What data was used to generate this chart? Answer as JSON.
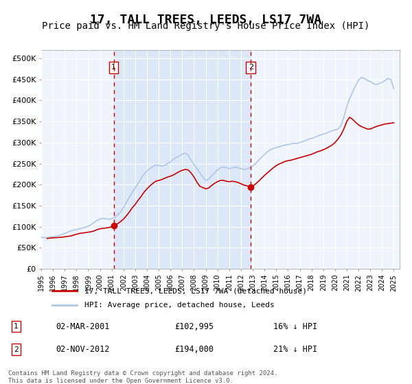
{
  "title": "17, TALL TREES, LEEDS, LS17 7WA",
  "subtitle": "Price paid vs. HM Land Registry's House Price Index (HPI)",
  "title_fontsize": 13,
  "subtitle_fontsize": 10,
  "ylabel": "",
  "xlim_start": 1995.0,
  "xlim_end": 2025.5,
  "ylim": [
    0,
    520000
  ],
  "yticks": [
    0,
    50000,
    100000,
    150000,
    200000,
    250000,
    300000,
    350000,
    400000,
    450000,
    500000
  ],
  "ytick_labels": [
    "£0",
    "£50K",
    "£100K",
    "£150K",
    "£200K",
    "£250K",
    "£300K",
    "£350K",
    "£400K",
    "£450K",
    "£500K"
  ],
  "xticks": [
    1995,
    1996,
    1997,
    1998,
    1999,
    2000,
    2001,
    2002,
    2003,
    2004,
    2005,
    2006,
    2007,
    2008,
    2009,
    2010,
    2011,
    2012,
    2013,
    2014,
    2015,
    2016,
    2017,
    2018,
    2019,
    2020,
    2021,
    2022,
    2023,
    2024,
    2025
  ],
  "hpi_color": "#aec6e8",
  "price_color": "#cc0000",
  "marker_color": "#cc0000",
  "background_color": "#f0f4fc",
  "plot_bg_color": "#f0f4fc",
  "shaded_region": [
    2001.17,
    2012.84
  ],
  "shaded_color": "#dce8f8",
  "vline1_x": 2001.17,
  "vline2_x": 2012.84,
  "vline_color": "#cc0000",
  "marker1_x": 2001.17,
  "marker1_y": 102995,
  "marker2_x": 2012.84,
  "marker2_y": 194000,
  "legend_label1": "17, TALL TREES, LEEDS, LS17 7WA (detached house)",
  "legend_label2": "HPI: Average price, detached house, Leeds",
  "annotation1_label": "1",
  "annotation2_label": "2",
  "footer_text": "Contains HM Land Registry data © Crown copyright and database right 2024.\nThis data is licensed under the Open Government Licence v3.0.",
  "table_row1": [
    "1",
    "02-MAR-2001",
    "£102,995",
    "16% ↓ HPI"
  ],
  "table_row2": [
    "2",
    "02-NOV-2012",
    "£194,000",
    "21% ↓ HPI"
  ],
  "hpi_data_x": [
    1995.0,
    1995.25,
    1995.5,
    1995.75,
    1996.0,
    1996.25,
    1996.5,
    1996.75,
    1997.0,
    1997.25,
    1997.5,
    1997.75,
    1998.0,
    1998.25,
    1998.5,
    1998.75,
    1999.0,
    1999.25,
    1999.5,
    1999.75,
    2000.0,
    2000.25,
    2000.5,
    2000.75,
    2001.0,
    2001.25,
    2001.5,
    2001.75,
    2002.0,
    2002.25,
    2002.5,
    2002.75,
    2003.0,
    2003.25,
    2003.5,
    2003.75,
    2004.0,
    2004.25,
    2004.5,
    2004.75,
    2005.0,
    2005.25,
    2005.5,
    2005.75,
    2006.0,
    2006.25,
    2006.5,
    2006.75,
    2007.0,
    2007.25,
    2007.5,
    2007.75,
    2008.0,
    2008.25,
    2008.5,
    2008.75,
    2009.0,
    2009.25,
    2009.5,
    2009.75,
    2010.0,
    2010.25,
    2010.5,
    2010.75,
    2011.0,
    2011.25,
    2011.5,
    2011.75,
    2012.0,
    2012.25,
    2012.5,
    2012.75,
    2013.0,
    2013.25,
    2013.5,
    2013.75,
    2014.0,
    2014.25,
    2014.5,
    2014.75,
    2015.0,
    2015.25,
    2015.5,
    2015.75,
    2016.0,
    2016.25,
    2016.5,
    2016.75,
    2017.0,
    2017.25,
    2017.5,
    2017.75,
    2018.0,
    2018.25,
    2018.5,
    2018.75,
    2019.0,
    2019.25,
    2019.5,
    2019.75,
    2020.0,
    2020.25,
    2020.5,
    2020.75,
    2021.0,
    2021.25,
    2021.5,
    2021.75,
    2022.0,
    2022.25,
    2022.5,
    2022.75,
    2023.0,
    2023.25,
    2023.5,
    2023.75,
    2024.0,
    2024.25,
    2024.5,
    2024.75,
    2025.0
  ],
  "hpi_data_y": [
    75000,
    74000,
    74500,
    75500,
    76000,
    77000,
    79000,
    81000,
    84000,
    87000,
    90000,
    92000,
    93000,
    95000,
    97000,
    99000,
    101000,
    105000,
    110000,
    115000,
    118000,
    120000,
    119000,
    118000,
    119000,
    122000,
    128000,
    135000,
    145000,
    158000,
    170000,
    182000,
    192000,
    203000,
    215000,
    225000,
    232000,
    238000,
    243000,
    247000,
    245000,
    244000,
    246000,
    250000,
    254000,
    260000,
    265000,
    268000,
    272000,
    275000,
    270000,
    258000,
    248000,
    238000,
    228000,
    218000,
    210000,
    213000,
    220000,
    228000,
    235000,
    240000,
    242000,
    240000,
    238000,
    240000,
    242000,
    240000,
    238000,
    236000,
    237000,
    240000,
    244000,
    250000,
    258000,
    265000,
    272000,
    278000,
    283000,
    286000,
    288000,
    290000,
    292000,
    294000,
    295000,
    297000,
    298000,
    298000,
    300000,
    302000,
    305000,
    308000,
    310000,
    312000,
    315000,
    318000,
    320000,
    322000,
    325000,
    328000,
    330000,
    332000,
    340000,
    360000,
    385000,
    405000,
    420000,
    435000,
    448000,
    455000,
    452000,
    448000,
    445000,
    440000,
    438000,
    440000,
    443000,
    447000,
    452000,
    450000,
    428000
  ],
  "price_data_x": [
    1995.5,
    1995.75,
    1996.0,
    1996.25,
    1996.5,
    1996.75,
    1997.0,
    1997.25,
    1997.5,
    1997.75,
    1998.0,
    1998.25,
    1998.5,
    1998.75,
    1999.0,
    1999.25,
    1999.5,
    1999.75,
    2000.0,
    2000.25,
    2000.5,
    2000.75,
    2001.0,
    2001.17,
    2001.5,
    2001.75,
    2002.0,
    2002.25,
    2002.5,
    2002.75,
    2003.0,
    2003.25,
    2003.5,
    2003.75,
    2004.0,
    2004.25,
    2004.5,
    2004.75,
    2005.0,
    2005.25,
    2005.5,
    2005.75,
    2006.0,
    2006.25,
    2006.5,
    2006.75,
    2007.0,
    2007.25,
    2007.5,
    2007.75,
    2008.0,
    2008.25,
    2008.5,
    2008.75,
    2009.0,
    2009.25,
    2009.5,
    2009.75,
    2010.0,
    2010.25,
    2010.5,
    2010.75,
    2011.0,
    2011.25,
    2011.5,
    2011.75,
    2012.0,
    2012.25,
    2012.5,
    2012.84,
    2013.0,
    2013.25,
    2013.5,
    2013.75,
    2014.0,
    2014.25,
    2014.5,
    2014.75,
    2015.0,
    2015.25,
    2015.5,
    2015.75,
    2016.0,
    2016.25,
    2016.5,
    2016.75,
    2017.0,
    2017.25,
    2017.5,
    2017.75,
    2018.0,
    2018.25,
    2018.5,
    2018.75,
    2019.0,
    2019.25,
    2019.5,
    2019.75,
    2020.0,
    2020.25,
    2020.5,
    2020.75,
    2021.0,
    2021.25,
    2021.5,
    2021.75,
    2022.0,
    2022.25,
    2022.5,
    2022.75,
    2023.0,
    2023.25,
    2023.5,
    2023.75,
    2024.0,
    2024.25,
    2024.5,
    2024.75,
    2025.0
  ],
  "price_data_y": [
    72000,
    73000,
    73500,
    74000,
    74500,
    75000,
    76000,
    77000,
    78000,
    80000,
    82000,
    84000,
    85000,
    86000,
    87000,
    88000,
    90000,
    93000,
    95000,
    96000,
    97000,
    98000,
    100000,
    102995,
    107000,
    112000,
    118000,
    126000,
    135000,
    145000,
    153000,
    163000,
    172000,
    182000,
    190000,
    197000,
    203000,
    208000,
    210000,
    212000,
    215000,
    218000,
    220000,
    223000,
    227000,
    231000,
    234000,
    236000,
    235000,
    228000,
    218000,
    206000,
    196000,
    193000,
    190000,
    192000,
    198000,
    203000,
    207000,
    210000,
    210000,
    208000,
    207000,
    208000,
    207000,
    205000,
    202000,
    199000,
    197000,
    194000,
    196000,
    202000,
    208000,
    215000,
    222000,
    228000,
    234000,
    240000,
    245000,
    249000,
    252000,
    255000,
    257000,
    258000,
    260000,
    262000,
    264000,
    266000,
    268000,
    270000,
    272000,
    275000,
    278000,
    280000,
    283000,
    286000,
    290000,
    294000,
    300000,
    308000,
    318000,
    332000,
    350000,
    360000,
    355000,
    348000,
    342000,
    338000,
    335000,
    332000,
    332000,
    335000,
    338000,
    340000,
    342000,
    344000,
    345000,
    346000,
    347000
  ]
}
